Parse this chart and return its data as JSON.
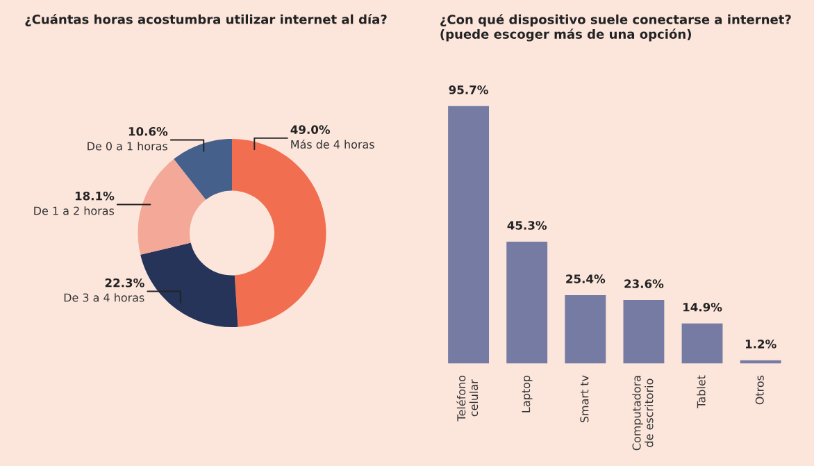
{
  "chart_data": [
    {
      "type": "donut",
      "title": "¿Cuántas horas acostumbra utilizar internet al día?",
      "categories": [
        "Más de 4 horas",
        "De 3 a 4 horas",
        "De 1 a 2 horas",
        "De 0 a 1 horas"
      ],
      "values": [
        49.0,
        22.3,
        18.1,
        10.6
      ],
      "colors": [
        "#f26e50",
        "#253458",
        "#f4a898",
        "#46608c"
      ],
      "value_labels": [
        "49.0%",
        "22.3%",
        "18.1%",
        "10.6%"
      ]
    },
    {
      "type": "bar",
      "title": "¿Con qué dispositivo suele conectarse a internet?\n(puede escoger más de una opción)",
      "categories": [
        "Teléfono\ncelular",
        "Laptop",
        "Smart tv",
        "Computadora\nde escritorio",
        "Tablet",
        "Otros"
      ],
      "values": [
        95.7,
        45.3,
        25.4,
        23.6,
        14.9,
        1.2
      ],
      "color": "#767ba3",
      "value_labels": [
        "95.7%",
        "45.3%",
        "25.4%",
        "23.6%",
        "14.9%",
        "1.2%"
      ]
    }
  ]
}
